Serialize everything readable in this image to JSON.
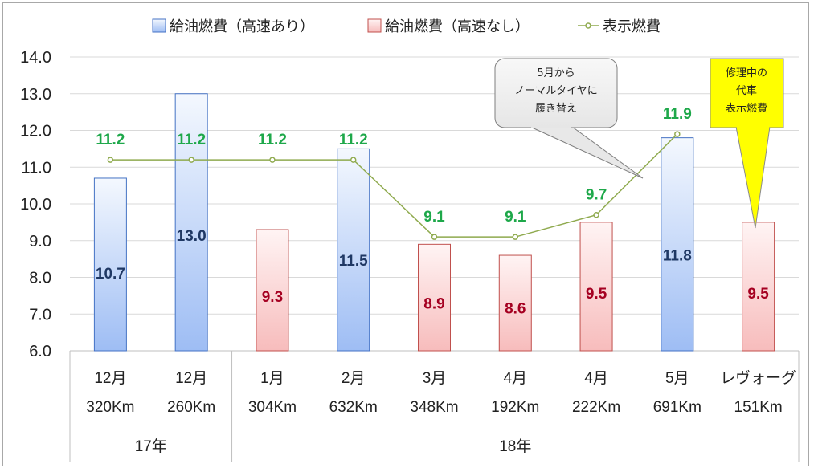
{
  "chart_data": {
    "type": "bar",
    "categories": [
      [
        "12月",
        "320Km"
      ],
      [
        "12月",
        "260Km"
      ],
      [
        "1月",
        "304Km"
      ],
      [
        "2月",
        "632Km"
      ],
      [
        "3月",
        "348Km"
      ],
      [
        "4月",
        "192Km"
      ],
      [
        "4月",
        "222Km"
      ],
      [
        "5月",
        "691Km"
      ],
      [
        "レヴォーグ",
        "151Km"
      ]
    ],
    "groups": [
      {
        "label": "17年",
        "span": [
          0,
          1
        ]
      },
      {
        "label": "18年",
        "span": [
          2,
          8
        ]
      }
    ],
    "series": [
      {
        "name": "給油燃費（高速あり）",
        "kind": "bar",
        "values": [
          10.7,
          13.0,
          null,
          11.5,
          null,
          null,
          null,
          11.8,
          null
        ],
        "labels": [
          "10.7",
          "13.0",
          "",
          "11.5",
          "",
          "",
          "",
          "11.8",
          ""
        ],
        "color": "#4472c4",
        "label_color": "#1f3864"
      },
      {
        "name": "給油燃費（高速なし）",
        "kind": "bar",
        "values": [
          null,
          null,
          9.3,
          null,
          8.9,
          8.6,
          9.5,
          null,
          9.5
        ],
        "labels": [
          "",
          "",
          "9.3",
          "",
          "8.9",
          "8.6",
          "9.5",
          "",
          "9.5"
        ],
        "color": "#c0504d",
        "label_color": "#a50021"
      },
      {
        "name": "表示燃費",
        "kind": "line",
        "values": [
          11.2,
          11.2,
          11.2,
          11.2,
          9.1,
          9.1,
          9.7,
          11.9,
          null
        ],
        "labels": [
          "11.2",
          "11.2",
          "11.2",
          "11.2",
          "9.1",
          "9.1",
          "9.7",
          "11.9",
          ""
        ],
        "color": "#8faa4e",
        "label_color": "#1ea84a"
      }
    ],
    "ylim": [
      6.0,
      14.0
    ],
    "yticks": [
      "6.0",
      "7.0",
      "8.0",
      "9.0",
      "10.0",
      "11.0",
      "12.0",
      "13.0",
      "14.0"
    ],
    "grid": true,
    "legend": "top",
    "annotations": [
      {
        "lines": [
          "5月から",
          "ノーマルタイヤに",
          "履き替え"
        ],
        "style": "gray"
      },
      {
        "lines": [
          "修理中の",
          "代車",
          "表示燃費"
        ],
        "style": "yellow"
      }
    ]
  }
}
